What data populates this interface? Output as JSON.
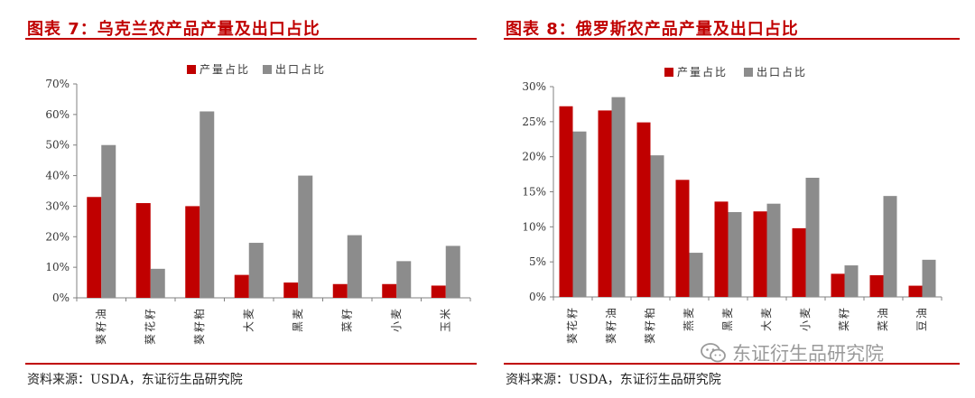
{
  "colors": {
    "production": "#c00000",
    "export": "#8c8c8c",
    "accent": "#c00000"
  },
  "left": {
    "title": "图表 7：乌克兰农产品产量及出口占比",
    "source": "资料来源：USDA，东证衍生品研究院"
  },
  "right": {
    "title": "图表 8：俄罗斯农产品产量及出口占比",
    "source": "资料来源：USDA，东证衍生品研究院"
  },
  "watermark": {
    "text": "东证衍生品研究院",
    "icon": "wechat-icon"
  },
  "chart_data": [
    {
      "type": "bar",
      "categories": [
        "葵籽油",
        "葵花籽",
        "葵籽粕",
        "大麦",
        "黑麦",
        "菜籽",
        "小麦",
        "玉米"
      ],
      "series": [
        {
          "name": "产量占比",
          "values": [
            33,
            31,
            30,
            7.5,
            5,
            4.5,
            4.5,
            4
          ]
        },
        {
          "name": "出口占比",
          "values": [
            50,
            9.5,
            61,
            18,
            40,
            20.5,
            12,
            17
          ]
        }
      ],
      "ylim": [
        0,
        70
      ],
      "yticks": [
        0,
        10,
        20,
        30,
        40,
        50,
        60,
        70
      ],
      "ytick_labels": [
        "0%",
        "10%",
        "20%",
        "30%",
        "40%",
        "50%",
        "60%",
        "70%"
      ],
      "legend": "top-center",
      "grid": false
    },
    {
      "type": "bar",
      "categories": [
        "葵花籽",
        "葵籽油",
        "葵籽粕",
        "燕麦",
        "黑麦",
        "大麦",
        "小麦",
        "菜籽",
        "菜油",
        "豆油"
      ],
      "series": [
        {
          "name": "产量占比",
          "values": [
            27.2,
            26.6,
            24.9,
            16.7,
            13.6,
            12.2,
            9.8,
            3.3,
            3.1,
            1.6
          ]
        },
        {
          "name": "出口占比",
          "values": [
            23.6,
            28.5,
            20.2,
            6.3,
            12.1,
            13.3,
            17,
            4.5,
            14.4,
            5.3
          ]
        }
      ],
      "ylim": [
        0,
        30
      ],
      "yticks": [
        0,
        5,
        10,
        15,
        20,
        25,
        30
      ],
      "ytick_labels": [
        "0%",
        "5%",
        "10%",
        "15%",
        "20%",
        "25%",
        "30%"
      ],
      "legend": "top-center",
      "grid": false
    }
  ]
}
